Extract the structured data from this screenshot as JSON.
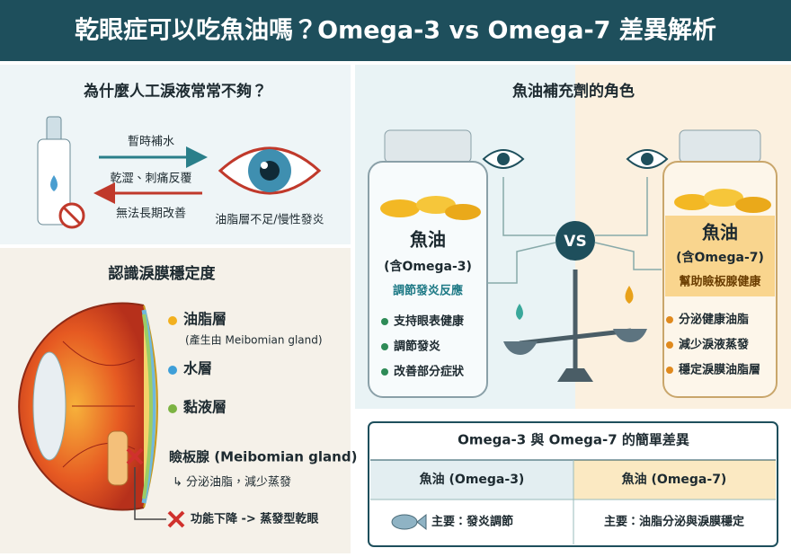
{
  "header": {
    "title": "乾眼症可以吃魚油嗎？Omega-3 vs Omega-7 差異解析"
  },
  "tears_panel": {
    "heading": "為什麼人工淚液常常不夠？",
    "arrows": [
      "暫時補水",
      "乾澀、刺痛反覆",
      "無法長期改善"
    ],
    "eye_caption": "油脂層不足/慢性發炎"
  },
  "film_panel": {
    "heading": "認識淚膜穩定度",
    "layers": [
      {
        "label": "油脂層",
        "note": "(產生由 Meibomian gland)"
      },
      {
        "label": "水層"
      },
      {
        "label": "黏液層"
      }
    ],
    "gland": {
      "label": "瞼板腺 (Meibomian gland)",
      "note": "↳ 分泌油脂，減少蒸發",
      "failure": "功能下降 -> 蒸發型乾眼"
    }
  },
  "supplement_panel": {
    "heading": "魚油補充劑的角色",
    "vs": "VS",
    "omega3": {
      "name": "魚油",
      "sub": "(含Omega-3)",
      "role": "調節發炎反應",
      "points": [
        "支持眼表健康",
        "調節發炎",
        "改善部分症狀"
      ]
    },
    "omega7": {
      "name": "魚油",
      "sub": "(含Omega-7)",
      "role": "幫助瞼板腺健康",
      "points": [
        "分泌健康油脂",
        "減少淚液蒸發",
        "穩定淚膜油脂層"
      ]
    }
  },
  "table": {
    "title": "Omega-3 與 Omega-7 的簡單差異",
    "header": [
      "魚油 (Omega-3)",
      "魚油 (Omega-7)"
    ],
    "rows": [
      [
        "主要：發炎調節",
        "主要：油脂分泌與淚膜穩定"
      ]
    ]
  }
}
